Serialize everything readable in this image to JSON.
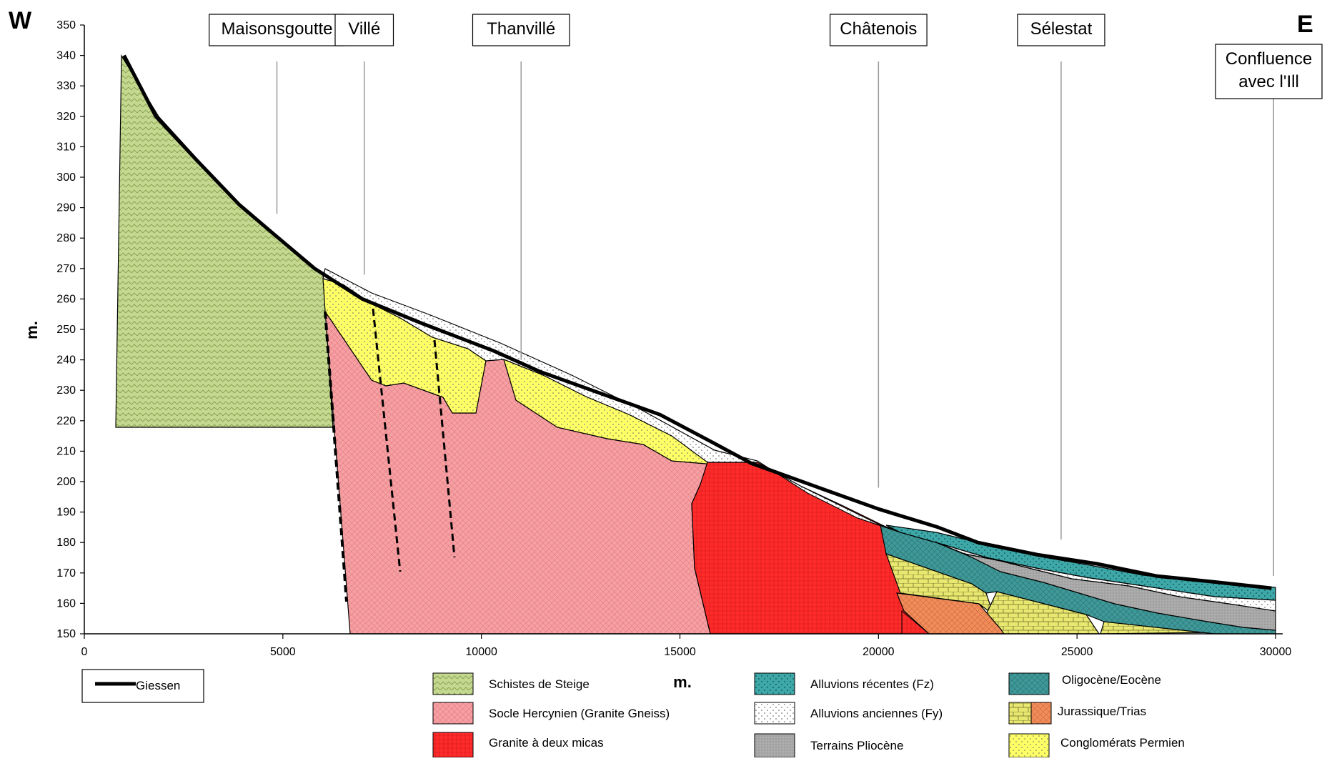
{
  "chart_data": {
    "type": "geological cross-section",
    "west_label": "W",
    "east_label": "E",
    "ylabel": "m.",
    "xlabel": "m.",
    "xlim": [
      0,
      30000
    ],
    "ylim": [
      150,
      350
    ],
    "x_ticks": [
      "0",
      "5000",
      "10000",
      "15000",
      "20000",
      "25000",
      "30000"
    ],
    "y_ticks": [
      "150",
      "160",
      "170",
      "180",
      "190",
      "200",
      "210",
      "220",
      "230",
      "240",
      "250",
      "260",
      "270",
      "280",
      "290",
      "300",
      "310",
      "320",
      "330",
      "340",
      "350"
    ],
    "places": [
      {
        "name": "Maisonsgoutte",
        "x": 4850,
        "line_bottom": 288
      },
      {
        "name": "Villé",
        "x": 7050,
        "line_bottom": 268
      },
      {
        "name": "Thanvillé",
        "x": 11000,
        "line_bottom": 240
      },
      {
        "name": "Châtenois",
        "x": 20000,
        "line_bottom": 198
      },
      {
        "name": "Sélestat",
        "x": 24600,
        "line_bottom": 181
      },
      {
        "name": "Confluence\navec l'Ill",
        "x": 29950,
        "line_bottom": 169
      }
    ],
    "giessen_profile": [
      [
        1000,
        340
      ],
      [
        1800,
        320
      ],
      [
        2800,
        306
      ],
      [
        3900,
        291
      ],
      [
        4800,
        281
      ],
      [
        5800,
        270
      ],
      [
        7000,
        260
      ],
      [
        8500,
        252
      ],
      [
        10300,
        243
      ],
      [
        11500,
        236
      ],
      [
        13000,
        229
      ],
      [
        14500,
        222
      ],
      [
        15800,
        213
      ],
      [
        16800,
        206
      ],
      [
        18500,
        198
      ],
      [
        20000,
        191
      ],
      [
        21500,
        185
      ],
      [
        22500,
        180
      ],
      [
        24000,
        176
      ],
      [
        25500,
        173
      ],
      [
        27000,
        169
      ],
      [
        28500,
        167
      ],
      [
        29900,
        165
      ]
    ],
    "series": [
      {
        "name": "Giessen",
        "color": "#000000"
      },
      {
        "name": "Schistes de Steige",
        "color": "#c4d890"
      },
      {
        "name": "Socle Hercynien (Granite Gneiss)",
        "color": "#f7a0a4"
      },
      {
        "name": "Granite à deux micas",
        "color": "#ff2b2b"
      },
      {
        "name": "Alluvions récentes (Fz)",
        "color": "#3ea8a8"
      },
      {
        "name": "Alluvions anciennes (Fy)",
        "color": "#ffffff"
      },
      {
        "name": "Terrains Pliocène",
        "color": "#b0b0b0"
      },
      {
        "name": "Oligocène/Eocène",
        "color": "#3f9999"
      },
      {
        "name": "Jurassique/Trias",
        "color": "#e8e870"
      },
      {
        "name": "Conglomérats Permien",
        "color": "#ffff66"
      }
    ],
    "trias_color": "#f28c5a"
  }
}
